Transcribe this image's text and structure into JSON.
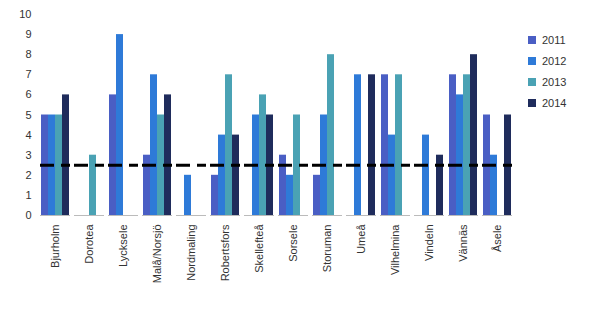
{
  "chart_data": {
    "type": "bar",
    "categories": [
      "Bjurholm",
      "Dorotea",
      "Lycksele",
      "Malå/Norsjö",
      "Nordmaling",
      "Robertsfors",
      "Skellefteå",
      "Sorsele",
      "Storuman",
      "Umeå",
      "Vilhelmina",
      "Vindeln",
      "Vännäs",
      "Åsele"
    ],
    "series": [
      {
        "name": "2011",
        "color": "#4a5ec4",
        "values": [
          5,
          null,
          6,
          3,
          null,
          2,
          null,
          3,
          2,
          null,
          7,
          null,
          7,
          5
        ]
      },
      {
        "name": "2012",
        "color": "#2e7ad8",
        "values": [
          5,
          null,
          9,
          7,
          2,
          4,
          5,
          2,
          5,
          7,
          4,
          4,
          6,
          3
        ]
      },
      {
        "name": "2013",
        "color": "#4aa2b4",
        "values": [
          5,
          3,
          null,
          5,
          null,
          7,
          6,
          5,
          8,
          null,
          7,
          null,
          7,
          null
        ]
      },
      {
        "name": "2014",
        "color": "#1f2c5c",
        "values": [
          6,
          null,
          null,
          6,
          null,
          4,
          5,
          null,
          null,
          7,
          null,
          3,
          8,
          5
        ]
      }
    ],
    "ylim": [
      0,
      10
    ],
    "yticks": [
      0,
      1,
      2,
      3,
      4,
      5,
      6,
      7,
      8,
      9,
      10
    ],
    "grid": false,
    "legend": "right",
    "reference_line": {
      "y": 2.5,
      "line_style": "dashed"
    }
  }
}
